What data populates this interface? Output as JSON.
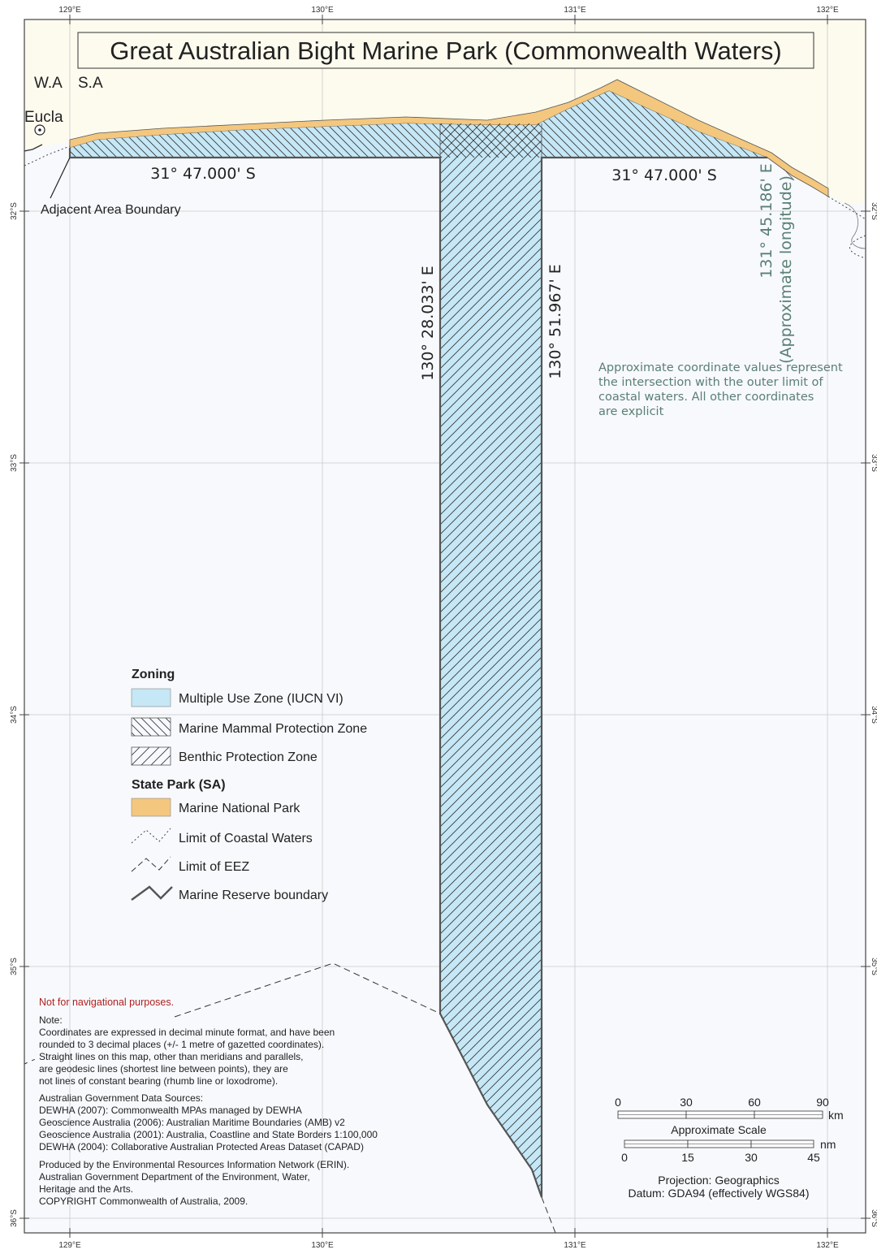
{
  "title": "Great Australian Bight Marine Park (Commonwealth Waters)",
  "state_labels": {
    "wa": "W.A",
    "sa": "S.A"
  },
  "place": {
    "eucla": "Eucla"
  },
  "lon_ticks": [
    "129°E",
    "130°E",
    "131°E",
    "132°E"
  ],
  "lat_ticks": [
    "32°S",
    "33°S",
    "34°S",
    "35°S",
    "36°S"
  ],
  "boundary_labels": {
    "lat_left": "31° 47.000' S",
    "lat_right": "31° 47.000' S",
    "lon_west": "130° 28.033' E",
    "lon_east": "130° 51.967' E",
    "lon_approx": "131° 45.186' E",
    "lon_approx_note": "(Approximate longitude)",
    "adjacent_area": "Adjacent Area Boundary"
  },
  "approx_note": [
    "Approximate coordinate values represent",
    "the intersection with the outer limit of",
    "coastal waters. All other coordinates",
    "are explicit"
  ],
  "legend": {
    "zoning_heading": "Zoning",
    "multiple_use": "Multiple Use Zone (IUCN VI)",
    "marine_mammal": "Marine Mammal Protection Zone",
    "benthic": "Benthic Protection Zone",
    "state_park_heading": "State Park (SA)",
    "marine_national_park": "Marine National Park",
    "coastal_waters": "Limit of Coastal Waters",
    "eez": "Limit of EEZ",
    "reserve_boundary": "Marine Reserve boundary"
  },
  "disclaimer": "Not for navigational purposes.",
  "notes": [
    "Note:",
    "Coordinates are expressed in decimal minute format, and have been",
    "rounded to 3 decimal places (+/- 1 metre of gazetted coordinates).",
    "Straight lines on this map, other than meridians and parallels,",
    "are geodesic lines (shortest line between points), they are",
    "not lines of constant bearing (rhumb line or loxodrome)."
  ],
  "sources": [
    "Australian Government Data Sources:",
    "DEWHA (2007): Commonwealth MPAs managed by DEWHA",
    "Geoscience Australia (2006): Australian Maritime Boundaries (AMB) v2",
    "Geoscience Australia (2001): Australia, Coastline and State Borders 1:100,000",
    "DEWHA (2004): Collaborative Australian Protected Areas Dataset (CAPAD)"
  ],
  "credits": [
    "Produced by the Environmental Resources Information Network (ERIN).",
    "Australian Government Department of the Environment, Water,",
    "Heritage and the Arts.",
    "COPYRIGHT Commonwealth of Australia, 2009."
  ],
  "scale": {
    "km_values": [
      "0",
      "30",
      "60",
      "90"
    ],
    "km_unit": "km",
    "title": "Approximate Scale",
    "nm_values": [
      "0",
      "15",
      "30",
      "45"
    ],
    "nm_unit": "nm"
  },
  "projection": "Projection: Geographics",
  "datum": "Datum: GDA94 (effectively WGS84)",
  "colors": {
    "land": "#fdfbee",
    "sea": "#f7f9fc",
    "multiple_use": "#c5e7f6",
    "marine_park": "#f4c77e",
    "boundary": "#555555",
    "grid": "#c8c8c8",
    "teal_text": "#5a7f75",
    "red_text": "#b21e1e"
  }
}
